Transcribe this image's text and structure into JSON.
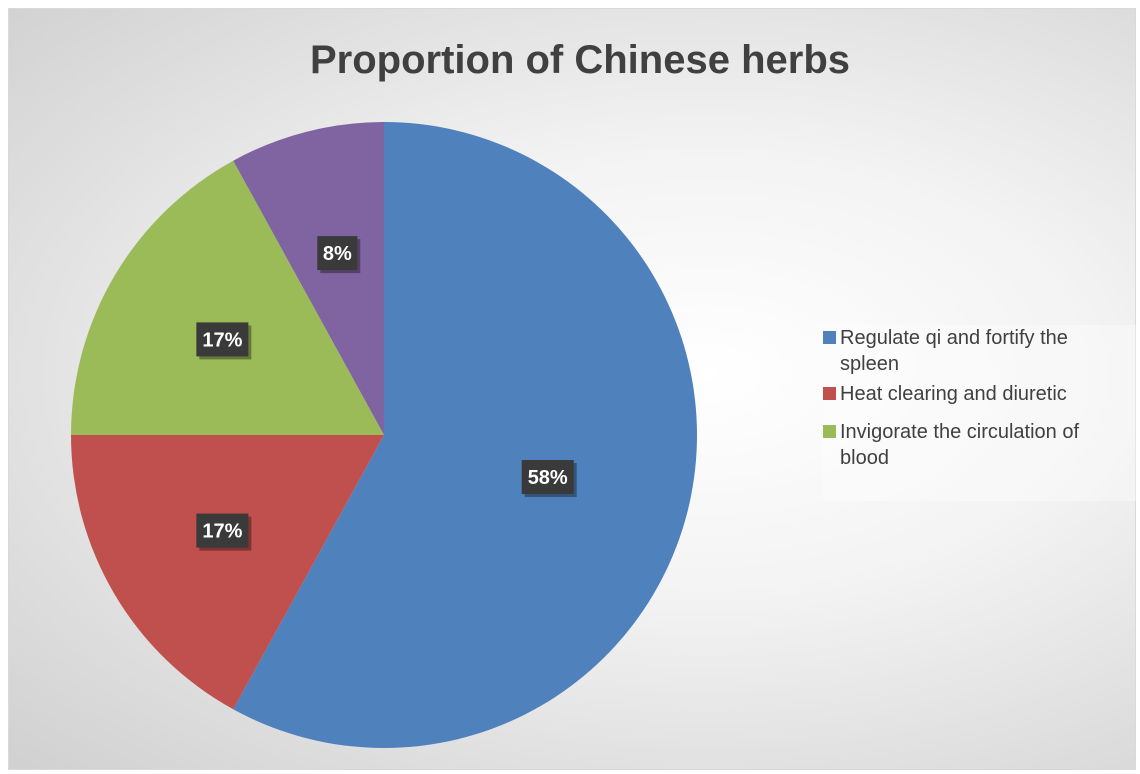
{
  "chart_data": {
    "type": "pie",
    "title": "Proportion of Chinese herbs",
    "slices": [
      {
        "name": "Regulate qi and fortify the spleen",
        "value": 58,
        "label": "58%",
        "color": "#4f81bd"
      },
      {
        "name": "Heat clearing and diuretic",
        "value": 17,
        "label": "17%",
        "color": "#c0504d"
      },
      {
        "name": "Invigorate the circulation of blood",
        "value": 17,
        "label": "17%",
        "color": "#9bbb59"
      },
      {
        "name": "",
        "value": 8,
        "label": "8%",
        "color": "#8064a2"
      }
    ],
    "legend_position": "right"
  }
}
